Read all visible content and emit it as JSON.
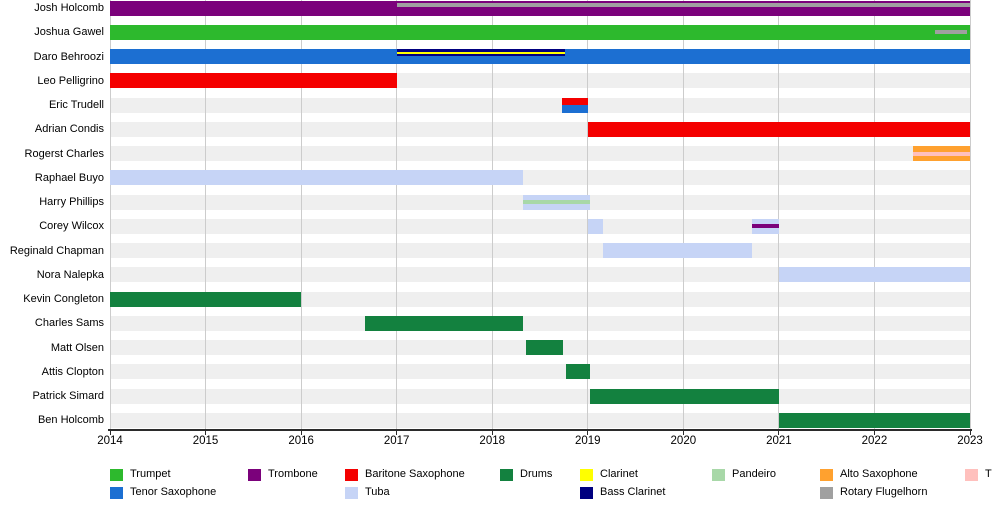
{
  "chart_data": {
    "type": "timeline-gantt",
    "title": "",
    "x_axis": {
      "start": 2014,
      "end": 2023,
      "ticks": [
        2014,
        2015,
        2016,
        2017,
        2018,
        2019,
        2020,
        2021,
        2022,
        2023
      ]
    },
    "instruments": {
      "trumpet": {
        "label": "Trumpet",
        "color": "#2db92d"
      },
      "trombone": {
        "label": "Trombone",
        "color": "#7b017b"
      },
      "baritone_saxophone": {
        "label": "Baritone Saxophone",
        "color": "#f40000"
      },
      "drums": {
        "label": "Drums",
        "color": "#13813f"
      },
      "clarinet": {
        "label": "Clarinet",
        "color": "#ffff00"
      },
      "pandeiro": {
        "label": "Pandeiro",
        "color": "#a8d8a8"
      },
      "alto_saxophone": {
        "label": "Alto Saxophone",
        "color": "#ffa12f"
      },
      "t_unknown": {
        "label": "T",
        "color": "#ffc0bd"
      },
      "tenor_saxophone": {
        "label": "Tenor Saxophone",
        "color": "#1c6fd2"
      },
      "tuba": {
        "label": "Tuba",
        "color": "#c6d4f6"
      },
      "bass_clarinet": {
        "label": "Bass Clarinet",
        "color": "#000080"
      },
      "rotary_flugelhorn": {
        "label": "Rotary Flugelhorn",
        "color": "#a0a0a0"
      }
    },
    "rows": [
      {
        "name": "Josh Holcomb",
        "segments": [
          {
            "instrument": "trombone",
            "start": 2014,
            "end": 2023,
            "layer": "full"
          },
          {
            "instrument": "rotary_flugelhorn",
            "start": 2017,
            "end": 2023,
            "layer": "top-stripe"
          }
        ]
      },
      {
        "name": "Joshua Gawel",
        "segments": [
          {
            "instrument": "trumpet",
            "start": 2014,
            "end": 2023,
            "layer": "full"
          },
          {
            "instrument": "rotary_flugelhorn",
            "start": 2022.63,
            "end": 2022.97,
            "layer": "middle-stripe"
          }
        ]
      },
      {
        "name": "Daro Behroozi",
        "segments": [
          {
            "instrument": "tenor_saxophone",
            "start": 2014,
            "end": 2023,
            "layer": "full"
          },
          {
            "instrument": "bass_clarinet",
            "start": 2017,
            "end": 2018.76,
            "layer": "upper-band"
          },
          {
            "instrument": "clarinet",
            "start": 2017,
            "end": 2018.76,
            "layer": "upper-inset-stripe"
          }
        ]
      },
      {
        "name": "Leo Pelligrino",
        "segments": [
          {
            "instrument": "baritone_saxophone",
            "start": 2014,
            "end": 2017,
            "layer": "full"
          }
        ]
      },
      {
        "name": "Eric Trudell",
        "segments": [
          {
            "instrument": "baritone_saxophone",
            "start": 2018.73,
            "end": 2019,
            "layer": "top-half"
          },
          {
            "instrument": "tenor_saxophone",
            "start": 2018.73,
            "end": 2019,
            "layer": "bottom-half"
          }
        ]
      },
      {
        "name": "Adrian Condis",
        "segments": [
          {
            "instrument": "baritone_saxophone",
            "start": 2019,
            "end": 2023,
            "layer": "full"
          }
        ]
      },
      {
        "name": "Rogerst Charles",
        "segments": [
          {
            "instrument": "alto_saxophone",
            "start": 2022.4,
            "end": 2023,
            "layer": "full"
          },
          {
            "instrument": "t_unknown",
            "start": 2022.4,
            "end": 2023,
            "layer": "middle-stripe"
          }
        ]
      },
      {
        "name": "Raphael Buyo",
        "segments": [
          {
            "instrument": "tuba",
            "start": 2014,
            "end": 2018.32,
            "layer": "full"
          }
        ]
      },
      {
        "name": "Harry Phillips",
        "segments": [
          {
            "instrument": "tuba",
            "start": 2018.32,
            "end": 2019.02,
            "layer": "full"
          },
          {
            "instrument": "pandeiro",
            "start": 2018.32,
            "end": 2019.02,
            "layer": "middle-stripe"
          }
        ]
      },
      {
        "name": "Corey Wilcox",
        "segments": [
          {
            "instrument": "tuba",
            "start": 2019,
            "end": 2019.16,
            "layer": "full"
          },
          {
            "instrument": "tuba",
            "start": 2020.72,
            "end": 2021,
            "layer": "full"
          },
          {
            "instrument": "trombone",
            "start": 2020.72,
            "end": 2021,
            "layer": "middle-stripe"
          }
        ]
      },
      {
        "name": "Reginald Chapman",
        "segments": [
          {
            "instrument": "tuba",
            "start": 2019.16,
            "end": 2020.72,
            "layer": "full"
          }
        ]
      },
      {
        "name": "Nora Nalepka",
        "segments": [
          {
            "instrument": "tuba",
            "start": 2021,
            "end": 2023,
            "layer": "full"
          }
        ]
      },
      {
        "name": "Kevin Congleton",
        "segments": [
          {
            "instrument": "drums",
            "start": 2014,
            "end": 2016,
            "layer": "full"
          }
        ]
      },
      {
        "name": "Charles Sams",
        "segments": [
          {
            "instrument": "drums",
            "start": 2016.67,
            "end": 2018.32,
            "layer": "full"
          }
        ]
      },
      {
        "name": "Matt Olsen",
        "segments": [
          {
            "instrument": "drums",
            "start": 2018.35,
            "end": 2018.74,
            "layer": "full"
          }
        ]
      },
      {
        "name": "Attis Clopton",
        "segments": [
          {
            "instrument": "drums",
            "start": 2018.77,
            "end": 2019.02,
            "layer": "full"
          }
        ]
      },
      {
        "name": "Patrick Simard",
        "segments": [
          {
            "instrument": "drums",
            "start": 2019.02,
            "end": 2021,
            "layer": "full"
          }
        ]
      },
      {
        "name": "Ben Holcomb",
        "segments": [
          {
            "instrument": "drums",
            "start": 2021,
            "end": 2023,
            "layer": "full"
          }
        ]
      }
    ],
    "legend": {
      "rows": [
        [
          {
            "key": "trumpet",
            "col": 0
          },
          {
            "key": "trombone",
            "col": 1
          },
          {
            "key": "baritone_saxophone",
            "col": 2
          },
          {
            "key": "drums",
            "col": 3
          },
          {
            "key": "clarinet",
            "col": 4
          },
          {
            "key": "pandeiro",
            "col": 5
          },
          {
            "key": "alto_saxophone",
            "col": 6
          },
          {
            "key": "t_unknown",
            "col": 7
          }
        ],
        [
          {
            "key": "tenor_saxophone",
            "col": 0
          },
          {
            "key": "tuba",
            "col": 2
          },
          {
            "key": "bass_clarinet",
            "col": 4
          },
          {
            "key": "rotary_flugelhorn",
            "col": 6
          }
        ]
      ]
    }
  }
}
